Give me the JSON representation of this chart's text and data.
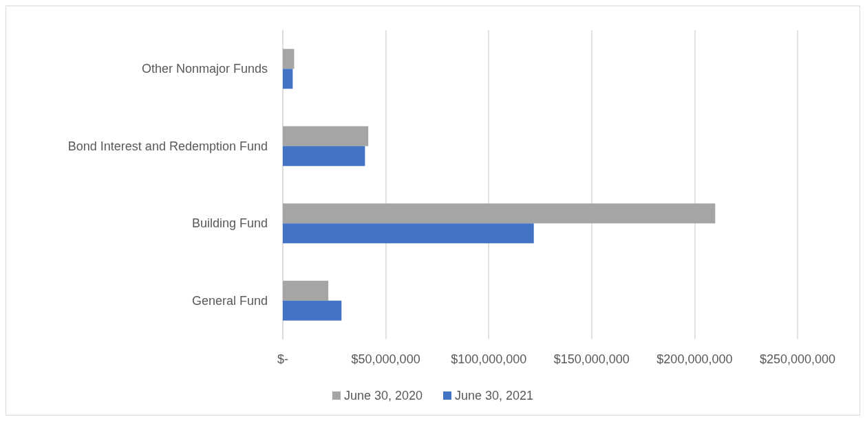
{
  "chart_data": {
    "type": "bar",
    "orientation": "horizontal",
    "categories": [
      "Other Nonmajor Funds",
      "Bond Interest and Redemption Fund",
      "Building Fund",
      "General Fund"
    ],
    "series": [
      {
        "name": "June 30, 2020",
        "color": "#a5a5a5",
        "values": [
          5500000,
          41500000,
          210000000,
          22100000
        ]
      },
      {
        "name": "June 30, 2021",
        "color": "#4472c4",
        "values": [
          4800000,
          39900000,
          121900000,
          28500000
        ]
      }
    ],
    "xlim": [
      0,
      250000000
    ],
    "xticks": [
      {
        "value": 0,
        "label": "$-"
      },
      {
        "value": 50000000,
        "label": "$50,000,000"
      },
      {
        "value": 100000000,
        "label": "$100,000,000"
      },
      {
        "value": 150000000,
        "label": "$150,000,000"
      },
      {
        "value": 200000000,
        "label": "$200,000,000"
      },
      {
        "value": 250000000,
        "label": "$250,000,000"
      }
    ],
    "grid": "x",
    "legend": "bottom"
  }
}
